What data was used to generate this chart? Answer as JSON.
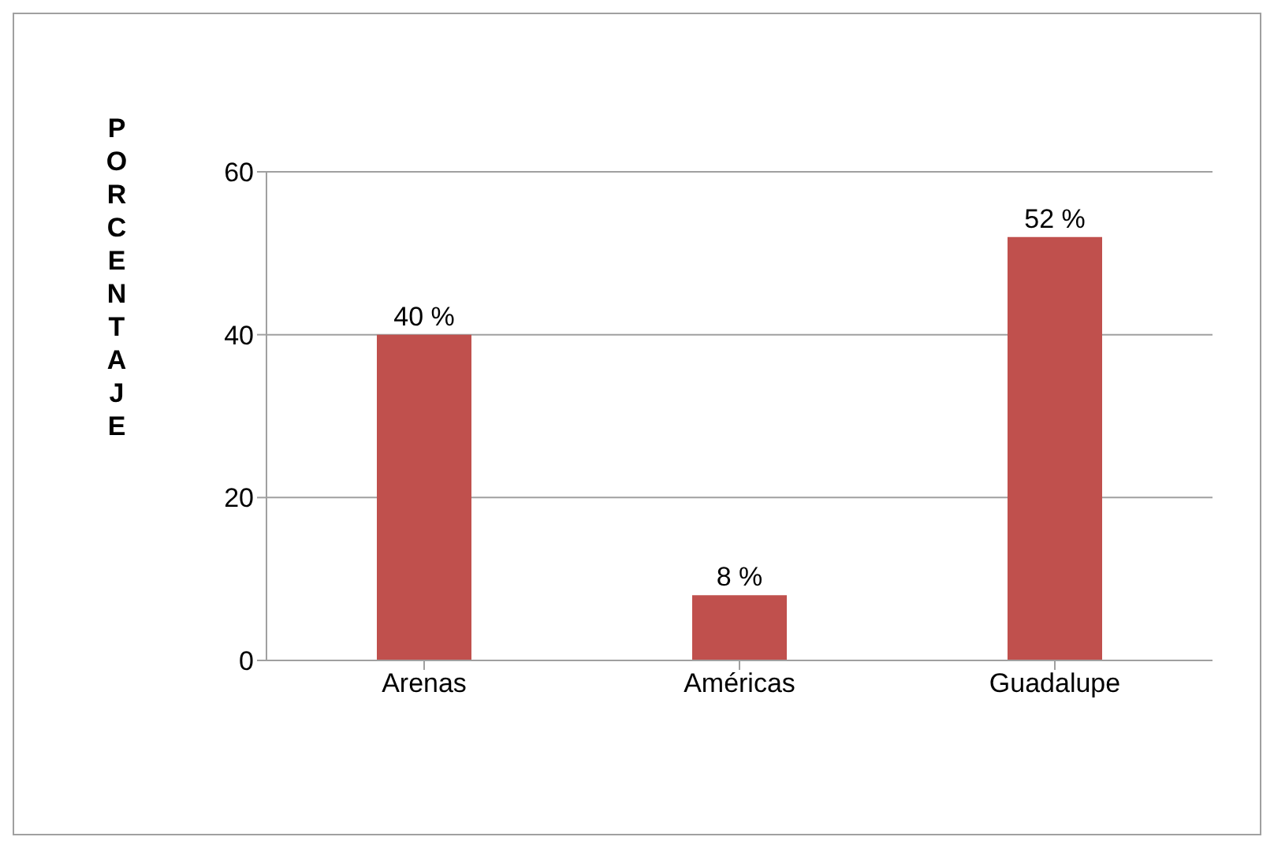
{
  "chart_data": {
    "type": "bar",
    "ylabel": "PORCENTAJE",
    "categories": [
      "Arenas",
      "Américas",
      "Guadalupe"
    ],
    "values": [
      40,
      8,
      52
    ],
    "value_labels": [
      "40 %",
      "8 %",
      "52 %"
    ],
    "color": "#c0504d",
    "ylim": [
      0,
      60
    ],
    "yticks": [
      0,
      20,
      40,
      60
    ],
    "grid": "y"
  }
}
